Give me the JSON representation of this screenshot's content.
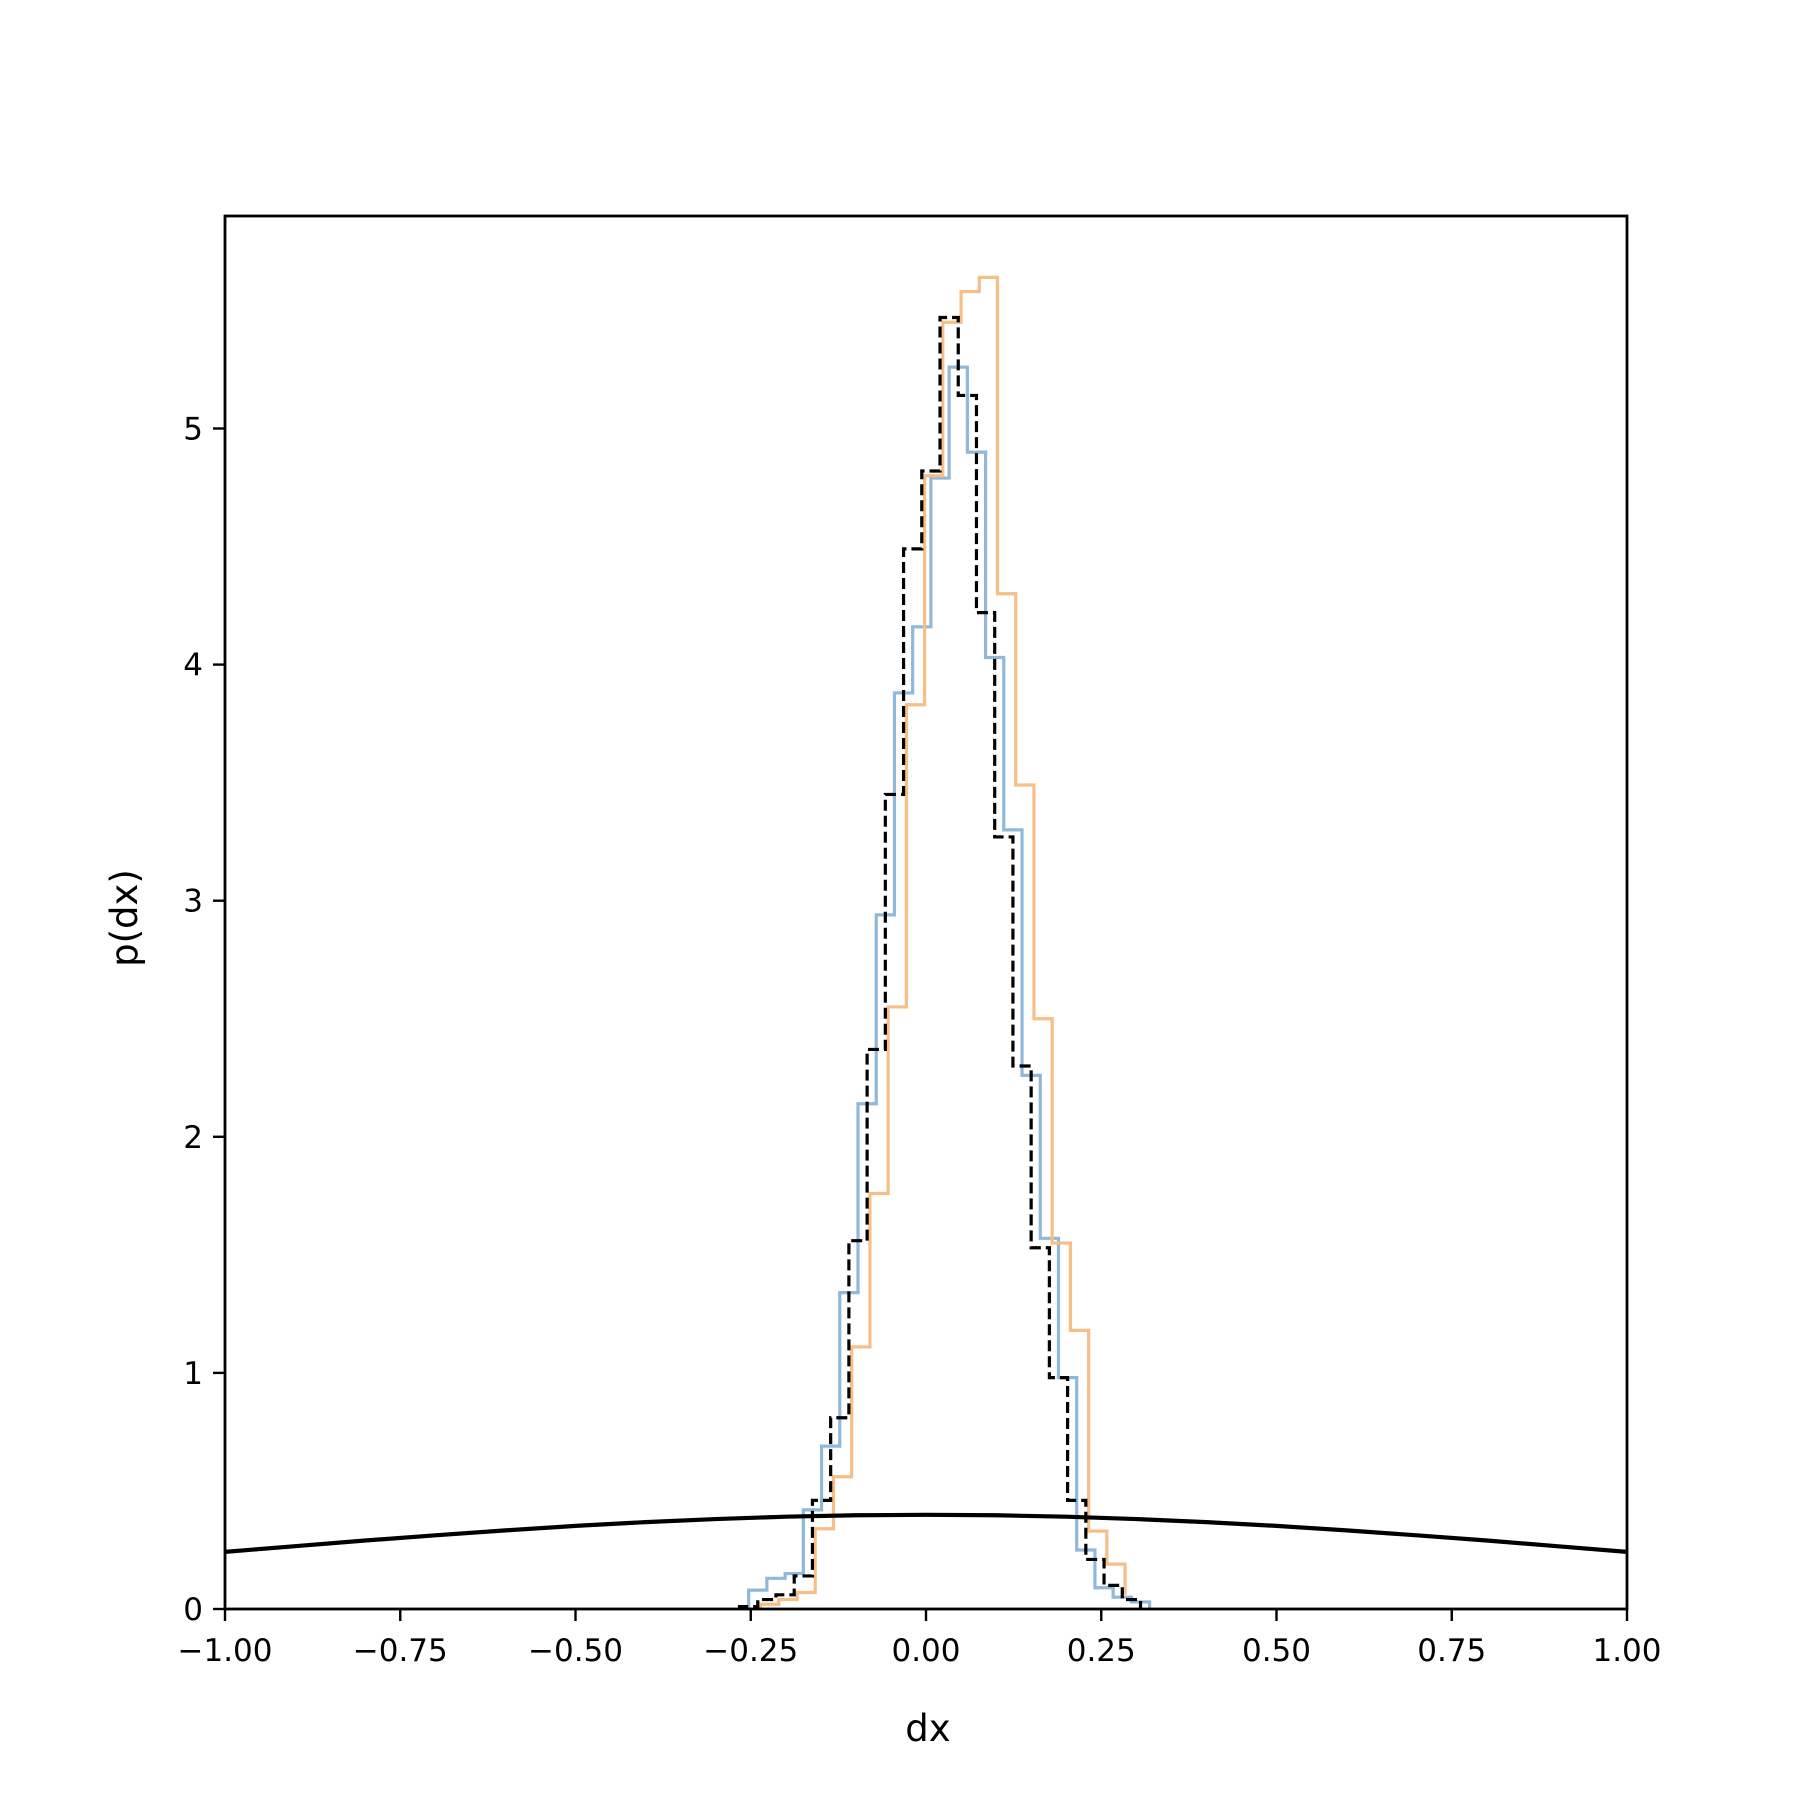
{
  "chart_data": {
    "type": "histogram",
    "xlabel": "dx",
    "ylabel": "p(dx)",
    "xlim": [
      -1.0,
      1.0
    ],
    "ylim": [
      0,
      5.9
    ],
    "grid": false,
    "legend": "none",
    "x_ticks": [
      {
        "value": -1.0,
        "label": "−1.00"
      },
      {
        "value": -0.75,
        "label": "−0.75"
      },
      {
        "value": -0.5,
        "label": "−0.50"
      },
      {
        "value": -0.25,
        "label": "−0.25"
      },
      {
        "value": 0.0,
        "label": "0.00"
      },
      {
        "value": 0.25,
        "label": "0.25"
      },
      {
        "value": 0.5,
        "label": "0.50"
      },
      {
        "value": 0.75,
        "label": "0.75"
      },
      {
        "value": 1.0,
        "label": "1.00"
      }
    ],
    "y_ticks": [
      {
        "value": 0,
        "label": "0"
      },
      {
        "value": 1,
        "label": "1"
      },
      {
        "value": 2,
        "label": "2"
      },
      {
        "value": 3,
        "label": "3"
      },
      {
        "value": 4,
        "label": "4"
      },
      {
        "value": 5,
        "label": "5"
      }
    ],
    "series": [
      {
        "kind": "step",
        "color": "#8fb8da",
        "edges": [
          -0.253,
          -0.227,
          -0.201,
          -0.175,
          -0.149,
          -0.123,
          -0.097,
          -0.071,
          -0.045,
          -0.019,
          0.007,
          0.033,
          0.059,
          0.085,
          0.111,
          0.137,
          0.163,
          0.189,
          0.215,
          0.241,
          0.267,
          0.293,
          0.319
        ],
        "values": [
          0.08,
          0.13,
          0.15,
          0.42,
          0.69,
          1.34,
          2.14,
          2.94,
          3.88,
          4.16,
          4.79,
          5.26,
          4.9,
          4.03,
          3.3,
          2.26,
          1.57,
          0.98,
          0.25,
          0.09,
          0.05,
          0.03
        ]
      },
      {
        "kind": "step",
        "color": "#f7bf86",
        "edges": [
          -0.236,
          -0.21,
          -0.184,
          -0.158,
          -0.132,
          -0.106,
          -0.08,
          -0.054,
          -0.028,
          -0.002,
          0.024,
          0.05,
          0.076,
          0.102,
          0.128,
          0.154,
          0.18,
          0.206,
          0.232,
          0.258,
          0.284
        ],
        "values": [
          0.02,
          0.04,
          0.07,
          0.34,
          0.56,
          1.11,
          1.76,
          2.55,
          3.83,
          4.8,
          5.45,
          5.58,
          5.64,
          4.3,
          3.49,
          2.5,
          1.55,
          1.18,
          0.33,
          0.19,
          0.06
        ]
      },
      {
        "kind": "step",
        "color": "#000000",
        "dashed": true,
        "edges": [
          -0.266,
          -0.24,
          -0.214,
          -0.188,
          -0.162,
          -0.136,
          -0.11,
          -0.084,
          -0.058,
          -0.032,
          -0.006,
          0.02,
          0.046,
          0.072,
          0.098,
          0.124,
          0.15,
          0.176,
          0.202,
          0.228,
          0.254,
          0.28,
          0.306
        ],
        "values": [
          0.01,
          0.04,
          0.06,
          0.14,
          0.46,
          0.81,
          1.56,
          2.37,
          3.45,
          4.49,
          4.82,
          5.47,
          5.14,
          4.22,
          3.27,
          2.3,
          1.53,
          0.98,
          0.46,
          0.21,
          0.1,
          0.04
        ]
      },
      {
        "kind": "line",
        "color": "#000000",
        "x": [
          -1.0,
          -0.9,
          -0.8,
          -0.7,
          -0.6,
          -0.5,
          -0.4,
          -0.3,
          -0.2,
          -0.1,
          0.0,
          0.1,
          0.2,
          0.3,
          0.4,
          0.5,
          0.6,
          0.7,
          0.8,
          0.9,
          1.0
        ],
        "values": [
          0.242,
          0.266,
          0.29,
          0.312,
          0.333,
          0.352,
          0.368,
          0.381,
          0.391,
          0.397,
          0.399,
          0.397,
          0.391,
          0.381,
          0.368,
          0.352,
          0.333,
          0.312,
          0.29,
          0.266,
          0.242
        ]
      }
    ]
  }
}
